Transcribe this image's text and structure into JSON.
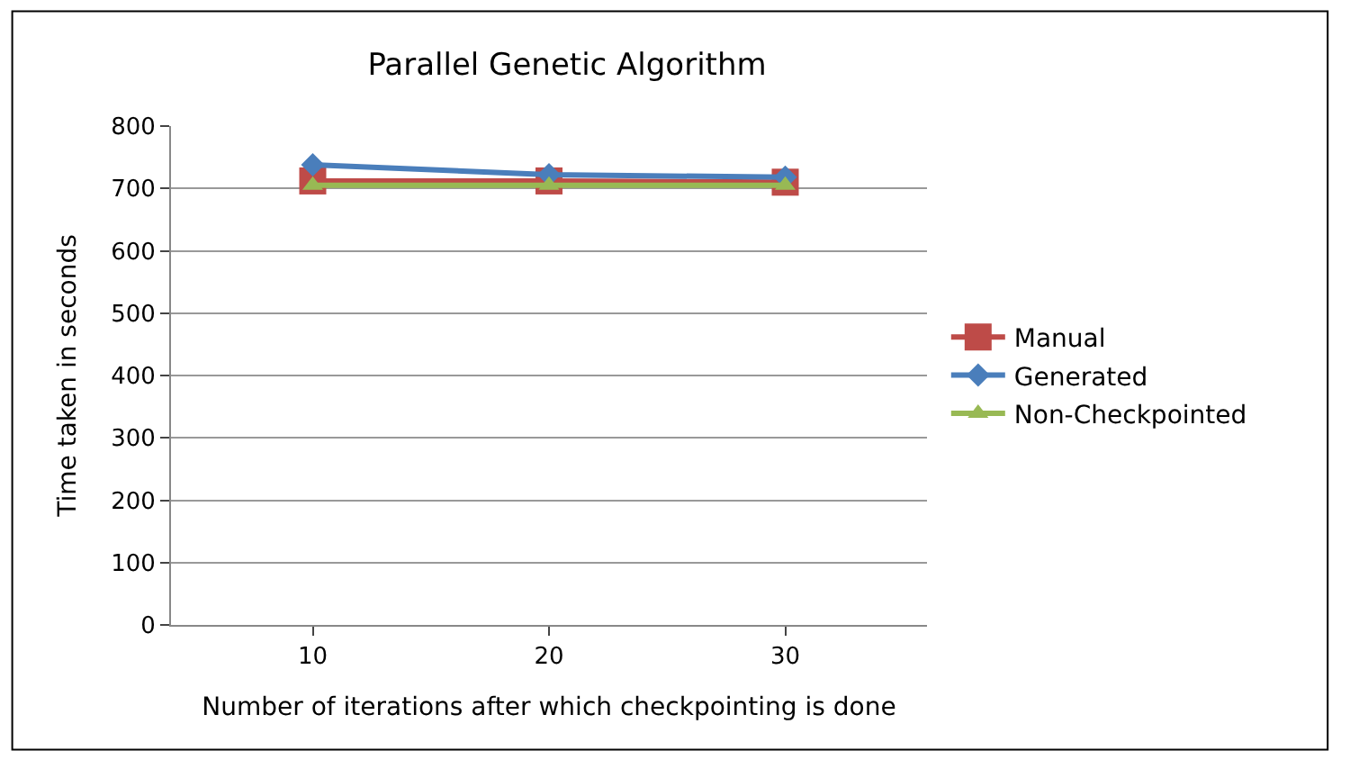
{
  "chart_data": {
    "type": "line",
    "title": "Parallel Genetic Algorithm",
    "xlabel": "Number of iterations after which checkpointing is done",
    "ylabel": "Time taken in seconds",
    "categories": [
      "10",
      "20",
      "30"
    ],
    "series": [
      {
        "name": "Manual",
        "color": "#be4b48",
        "values": [
          712,
          712,
          710
        ],
        "marker": "square"
      },
      {
        "name": "Generated",
        "color": "#4a7ebb",
        "values": [
          738,
          722,
          718
        ],
        "marker": "diamond"
      },
      {
        "name": "Non-Checkpointed",
        "color": "#98b954",
        "values": [
          705,
          705,
          705
        ],
        "marker": "triangle"
      }
    ],
    "ylim": [
      0,
      800
    ],
    "yticks": [
      0,
      100,
      200,
      300,
      400,
      500,
      600,
      700,
      800
    ],
    "grid": "y",
    "legend": "right"
  }
}
